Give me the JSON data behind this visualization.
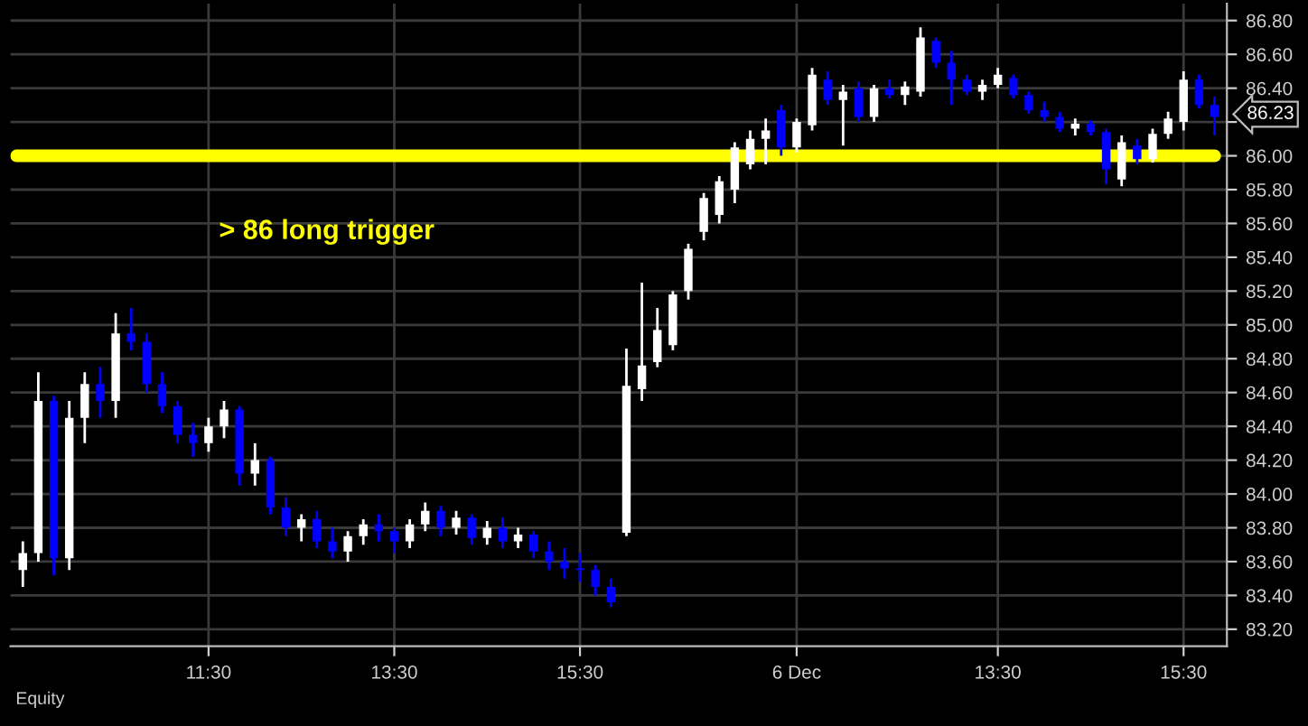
{
  "chart_data": {
    "type": "candlestick",
    "categories": [
      null,
      null,
      null,
      null,
      null,
      null,
      null,
      null,
      null,
      null,
      null,
      null,
      "11:30",
      null,
      null,
      null,
      null,
      null,
      null,
      null,
      null,
      null,
      null,
      null,
      "13:30",
      null,
      null,
      null,
      null,
      null,
      null,
      null,
      null,
      null,
      null,
      null,
      "15:30",
      null,
      null,
      null,
      null,
      null,
      null,
      null,
      null,
      null,
      null,
      null,
      null,
      null,
      "6 Dec",
      null,
      null,
      null,
      null,
      null,
      null,
      null,
      null,
      null,
      null,
      null,
      null,
      "13:30",
      null,
      null,
      null,
      null,
      null,
      null,
      null,
      null,
      null,
      null,
      null,
      "15:30",
      null,
      null
    ],
    "ohlc": [
      [
        83.55,
        83.72,
        83.45,
        83.65
      ],
      [
        83.65,
        84.72,
        83.6,
        84.55
      ],
      [
        84.55,
        84.58,
        83.52,
        83.62
      ],
      [
        83.62,
        84.55,
        83.55,
        84.45
      ],
      [
        84.45,
        84.72,
        84.3,
        84.65
      ],
      [
        84.65,
        84.75,
        84.45,
        84.55
      ],
      [
        84.55,
        85.07,
        84.45,
        84.95
      ],
      [
        84.95,
        85.1,
        84.85,
        84.9
      ],
      [
        84.9,
        84.95,
        84.6,
        84.65
      ],
      [
        84.65,
        84.72,
        84.48,
        84.52
      ],
      [
        84.52,
        84.55,
        84.3,
        84.35
      ],
      [
        84.35,
        84.42,
        84.22,
        84.3
      ],
      [
        84.3,
        84.45,
        84.25,
        84.4
      ],
      [
        84.4,
        84.55,
        84.33,
        84.5
      ],
      [
        84.5,
        84.52,
        84.05,
        84.12
      ],
      [
        84.12,
        84.3,
        84.05,
        84.2
      ],
      [
        84.2,
        84.22,
        83.88,
        83.92
      ],
      [
        83.92,
        83.98,
        83.75,
        83.8
      ],
      [
        83.8,
        83.88,
        83.72,
        83.85
      ],
      [
        83.85,
        83.9,
        83.68,
        83.72
      ],
      [
        83.72,
        83.8,
        83.62,
        83.66
      ],
      [
        83.66,
        83.78,
        83.6,
        83.75
      ],
      [
        83.75,
        83.85,
        83.7,
        83.82
      ],
      [
        83.82,
        83.88,
        83.72,
        83.78
      ],
      [
        83.78,
        83.8,
        83.65,
        83.72
      ],
      [
        83.72,
        83.85,
        83.68,
        83.82
      ],
      [
        83.82,
        83.95,
        83.78,
        83.9
      ],
      [
        83.9,
        83.93,
        83.75,
        83.8
      ],
      [
        83.8,
        83.9,
        83.76,
        83.86
      ],
      [
        83.86,
        83.88,
        83.7,
        83.74
      ],
      [
        83.74,
        83.84,
        83.7,
        83.8
      ],
      [
        83.8,
        83.86,
        83.68,
        83.72
      ],
      [
        83.72,
        83.8,
        83.68,
        83.76
      ],
      [
        83.76,
        83.78,
        83.62,
        83.66
      ],
      [
        83.66,
        83.72,
        83.55,
        83.6
      ],
      [
        83.6,
        83.68,
        83.5,
        83.56
      ],
      [
        83.56,
        83.65,
        83.48,
        83.55
      ],
      [
        83.55,
        83.58,
        83.4,
        83.45
      ],
      [
        83.45,
        83.5,
        83.33,
        83.36
      ],
      [
        83.77,
        84.86,
        83.75,
        84.64
      ],
      [
        84.62,
        85.25,
        84.55,
        84.76
      ],
      [
        84.78,
        85.1,
        84.75,
        84.97
      ],
      [
        84.88,
        85.2,
        84.85,
        85.18
      ],
      [
        85.2,
        85.48,
        85.15,
        85.45
      ],
      [
        85.55,
        85.78,
        85.5,
        85.75
      ],
      [
        85.65,
        85.88,
        85.6,
        85.85
      ],
      [
        85.8,
        86.08,
        85.72,
        86.05
      ],
      [
        85.95,
        86.15,
        85.92,
        86.1
      ],
      [
        86.1,
        86.22,
        85.95,
        86.15
      ],
      [
        86.27,
        86.3,
        86.0,
        86.05
      ],
      [
        86.05,
        86.22,
        86.02,
        86.2
      ],
      [
        86.18,
        86.52,
        86.15,
        86.48
      ],
      [
        86.45,
        86.5,
        86.3,
        86.33
      ],
      [
        86.33,
        86.42,
        86.06,
        86.38
      ],
      [
        86.4,
        86.44,
        86.2,
        86.23
      ],
      [
        86.23,
        86.42,
        86.2,
        86.4
      ],
      [
        86.4,
        86.45,
        86.34,
        86.36
      ],
      [
        86.36,
        86.44,
        86.3,
        86.41
      ],
      [
        86.38,
        86.76,
        86.35,
        86.7
      ],
      [
        86.68,
        86.7,
        86.52,
        86.55
      ],
      [
        86.55,
        86.62,
        86.3,
        86.45
      ],
      [
        86.45,
        86.48,
        86.36,
        86.38
      ],
      [
        86.38,
        86.45,
        86.33,
        86.42
      ],
      [
        86.42,
        86.52,
        86.4,
        86.48
      ],
      [
        86.46,
        86.48,
        86.34,
        86.36
      ],
      [
        86.36,
        86.38,
        86.25,
        86.27
      ],
      [
        86.27,
        86.32,
        86.2,
        86.23
      ],
      [
        86.23,
        86.26,
        86.14,
        86.16
      ],
      [
        86.16,
        86.22,
        86.12,
        86.19
      ],
      [
        86.19,
        86.21,
        86.12,
        86.14
      ],
      [
        86.14,
        86.16,
        85.83,
        85.92
      ],
      [
        85.86,
        86.12,
        85.82,
        86.08
      ],
      [
        86.06,
        86.1,
        85.95,
        85.98
      ],
      [
        85.98,
        86.16,
        85.96,
        86.13
      ],
      [
        86.13,
        86.26,
        86.1,
        86.22
      ],
      [
        86.2,
        86.5,
        86.15,
        86.45
      ],
      [
        86.45,
        86.48,
        86.28,
        86.3
      ],
      [
        86.3,
        86.35,
        86.12,
        86.23
      ]
    ],
    "colors": [
      "#ffffff",
      "#ffffff",
      "#0000ff",
      "#ffffff",
      "#ffffff",
      "#0000ff",
      "#ffffff",
      "#0000ff",
      "#0000ff",
      "#0000ff",
      "#0000ff",
      "#0000ff",
      "#ffffff",
      "#ffffff",
      "#0000ff",
      "#ffffff",
      "#0000ff",
      "#0000ff",
      "#ffffff",
      "#0000ff",
      "#0000ff",
      "#ffffff",
      "#ffffff",
      "#0000ff",
      "#0000ff",
      "#ffffff",
      "#ffffff",
      "#0000ff",
      "#ffffff",
      "#0000ff",
      "#ffffff",
      "#0000ff",
      "#ffffff",
      "#0000ff",
      "#0000ff",
      "#0000ff",
      "#0000ff",
      "#0000ff",
      "#0000ff",
      "#ffffff",
      "#ffffff",
      "#ffffff",
      "#ffffff",
      "#ffffff",
      "#ffffff",
      "#ffffff",
      "#ffffff",
      "#ffffff",
      "#ffffff",
      "#0000ff",
      "#ffffff",
      "#ffffff",
      "#0000ff",
      "#ffffff",
      "#0000ff",
      "#ffffff",
      "#0000ff",
      "#ffffff",
      "#ffffff",
      "#0000ff",
      "#0000ff",
      "#0000ff",
      "#ffffff",
      "#ffffff",
      "#0000ff",
      "#0000ff",
      "#0000ff",
      "#0000ff",
      "#ffffff",
      "#0000ff",
      "#0000ff",
      "#ffffff",
      "#0000ff",
      "#ffffff",
      "#ffffff",
      "#ffffff",
      "#0000ff",
      "#0000ff"
    ],
    "ylim": [
      83.1,
      86.9
    ],
    "yticks": [
      {
        "value": 83.2,
        "label": "83.20"
      },
      {
        "value": 83.4,
        "label": "83.40"
      },
      {
        "value": 83.6,
        "label": "83.60"
      },
      {
        "value": 83.8,
        "label": "83.80"
      },
      {
        "value": 84.0,
        "label": "84.00"
      },
      {
        "value": 84.2,
        "label": "84.20"
      },
      {
        "value": 84.4,
        "label": "84.40"
      },
      {
        "value": 84.6,
        "label": "84.60"
      },
      {
        "value": 84.8,
        "label": "84.80"
      },
      {
        "value": 85.0,
        "label": "85.00"
      },
      {
        "value": 85.2,
        "label": "85.20"
      },
      {
        "value": 85.4,
        "label": "85.40"
      },
      {
        "value": 85.6,
        "label": "85.60"
      },
      {
        "value": 85.8,
        "label": "85.80"
      },
      {
        "value": 86.0,
        "label": "86.00"
      },
      {
        "value": 86.2,
        "label": null
      },
      {
        "value": 86.4,
        "label": "86.40"
      },
      {
        "value": 86.6,
        "label": "86.60"
      },
      {
        "value": 86.8,
        "label": "86.80"
      }
    ],
    "ref_lines": [
      {
        "axis": "y",
        "value": 86.0,
        "label": "> 86 long trigger",
        "color": "#ffff00"
      }
    ],
    "annotations": [
      "86.23",
      "Equity"
    ],
    "grid": true,
    "legend": false
  }
}
